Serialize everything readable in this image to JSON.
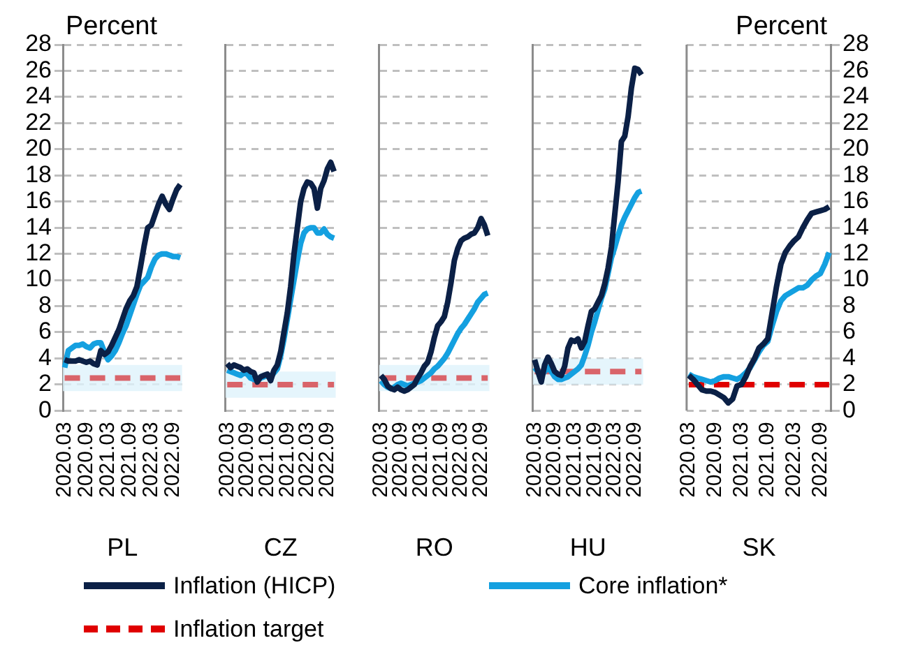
{
  "chart_data": [
    {
      "type": "line",
      "ylabel": "Percent",
      "xlabel": "PL",
      "grid": "y",
      "marker": "none",
      "categories": [
        "2020.03",
        null,
        null,
        null,
        null,
        null,
        "2020.09",
        null,
        null,
        null,
        null,
        null,
        "2021.03",
        null,
        null,
        null,
        null,
        null,
        "2021.09",
        null,
        null,
        null,
        null,
        null,
        "2022.03",
        null,
        null,
        null,
        null,
        null,
        "2022.09",
        null,
        null
      ],
      "ylim": [
        0,
        28
      ],
      "yticks": [
        0,
        2,
        4,
        6,
        8,
        10,
        12,
        14,
        16,
        18,
        20,
        22,
        24,
        26,
        28
      ],
      "bands": [
        {
          "axis": "y",
          "from": 1.5,
          "to": 3.5,
          "color": "#dff2fb"
        }
      ],
      "series": [
        {
          "color": "#0b2046",
          "values": [
            3.9,
            3.8,
            3.8,
            3.8,
            3.9,
            3.8,
            3.7,
            3.8,
            3.6,
            3.5,
            4.6,
            4.3,
            4.5,
            5.0,
            5.6,
            6.2,
            7.0,
            7.8,
            8.4,
            8.8,
            9.5,
            11.0,
            12.6,
            14.0,
            14.2,
            15.0,
            15.8,
            16.4,
            15.8,
            15.4,
            16.2,
            16.9,
            17.3
          ]
        },
        {
          "color": "#14a0e0",
          "values": [
            3.3,
            4.6,
            4.8,
            5.0,
            5.0,
            5.1,
            4.9,
            4.8,
            5.1,
            5.2,
            5.2,
            4.5,
            3.9,
            4.2,
            4.6,
            5.2,
            5.9,
            6.5,
            7.3,
            8.1,
            8.9,
            9.6,
            9.9,
            10.2,
            11.0,
            11.6,
            11.9,
            12.0,
            12.0,
            11.9,
            11.8,
            11.8,
            11.7
          ]
        },
        {
          "color": "#d9646a",
          "line_style": "dashed",
          "values": [
            2.5,
            2.5,
            2.5,
            2.5,
            2.5,
            2.5,
            2.5,
            2.5,
            2.5,
            2.5,
            2.5,
            2.5,
            2.5,
            2.5,
            2.5,
            2.5,
            2.5,
            2.5,
            2.5,
            2.5,
            2.5,
            2.5,
            2.5,
            2.5,
            2.5,
            2.5,
            2.5,
            2.5,
            2.5,
            2.5,
            2.5,
            2.5,
            2.5
          ]
        }
      ]
    },
    {
      "type": "line",
      "xlabel": "CZ",
      "grid": "y",
      "marker": "none",
      "tick_labels": "x",
      "categories": [
        "2020.03",
        null,
        null,
        null,
        null,
        null,
        "2020.09",
        null,
        null,
        null,
        null,
        null,
        "2021.03",
        null,
        null,
        null,
        null,
        null,
        "2021.09",
        null,
        null,
        null,
        null,
        null,
        "2022.03",
        null,
        null,
        null,
        null,
        null,
        "2022.09",
        null,
        null
      ],
      "ylim": [
        0,
        28
      ],
      "yticks": [
        0,
        2,
        4,
        6,
        8,
        10,
        12,
        14,
        16,
        18,
        20,
        22,
        24,
        26,
        28
      ],
      "bands": [
        {
          "axis": "y",
          "from": 1,
          "to": 3,
          "color": "#dff2fb"
        }
      ],
      "series": [
        {
          "color": "#0b2046",
          "values": [
            3.6,
            3.3,
            3.5,
            3.4,
            3.3,
            3.1,
            3.2,
            3.0,
            2.9,
            2.2,
            2.6,
            2.7,
            2.8,
            2.3,
            3.1,
            3.5,
            4.5,
            6.0,
            7.5,
            9.5,
            12.0,
            14.0,
            16.0,
            17.0,
            17.5,
            17.4,
            17.0,
            15.5,
            17.0,
            17.6,
            18.5,
            19.0,
            18.3
          ]
        },
        {
          "color": "#14a0e0",
          "values": [
            3.1,
            3.0,
            2.9,
            2.8,
            2.7,
            2.9,
            2.8,
            2.5,
            2.4,
            2.3,
            2.5,
            2.6,
            2.7,
            2.6,
            2.9,
            3.2,
            4.2,
            5.5,
            7.0,
            8.5,
            10.0,
            11.5,
            12.8,
            13.6,
            13.9,
            14.0,
            14.0,
            13.6,
            13.6,
            13.9,
            13.5,
            13.3,
            13.2
          ]
        },
        {
          "color": "#d9646a",
          "line_style": "dashed",
          "values": [
            2,
            2,
            2,
            2,
            2,
            2,
            2,
            2,
            2,
            2,
            2,
            2,
            2,
            2,
            2,
            2,
            2,
            2,
            2,
            2,
            2,
            2,
            2,
            2,
            2,
            2,
            2,
            2,
            2,
            2,
            2,
            2,
            2
          ]
        }
      ]
    },
    {
      "type": "line",
      "xlabel": "RO",
      "grid": "y",
      "marker": "none",
      "tick_labels": "x",
      "categories": [
        "2020.03",
        null,
        null,
        null,
        null,
        null,
        "2020.09",
        null,
        null,
        null,
        null,
        null,
        "2021.03",
        null,
        null,
        null,
        null,
        null,
        "2021.09",
        null,
        null,
        null,
        null,
        null,
        "2022.03",
        null,
        null,
        null,
        null,
        null,
        "2022.09",
        null,
        null
      ],
      "ylim": [
        0,
        28
      ],
      "yticks": [
        0,
        2,
        4,
        6,
        8,
        10,
        12,
        14,
        16,
        18,
        20,
        22,
        24,
        26,
        28
      ],
      "bands": [
        {
          "axis": "y",
          "from": 1.5,
          "to": 3.5,
          "color": "#dff2fb"
        }
      ],
      "series": [
        {
          "color": "#0b2046",
          "values": [
            2.7,
            2.4,
            1.9,
            1.7,
            1.6,
            1.8,
            1.6,
            1.5,
            1.6,
            1.8,
            2.0,
            2.5,
            2.9,
            3.4,
            3.7,
            4.5,
            5.6,
            6.5,
            6.8,
            7.2,
            8.3,
            9.8,
            11.5,
            12.4,
            13.0,
            13.2,
            13.3,
            13.5,
            13.6,
            14.0,
            14.7,
            14.2,
            13.4
          ]
        },
        {
          "color": "#14a0e0",
          "values": [
            2.3,
            2.0,
            1.8,
            1.7,
            1.8,
            2.0,
            2.1,
            2.0,
            1.9,
            2.0,
            2.1,
            2.2,
            2.3,
            2.5,
            2.7,
            2.9,
            3.2,
            3.4,
            3.7,
            4.0,
            4.4,
            4.9,
            5.4,
            5.9,
            6.3,
            6.6,
            7.0,
            7.4,
            7.8,
            8.3,
            8.6,
            8.9,
            9.0
          ]
        },
        {
          "color": "#d9646a",
          "line_style": "dashed",
          "values": [
            2.5,
            2.5,
            2.5,
            2.5,
            2.5,
            2.5,
            2.5,
            2.5,
            2.5,
            2.5,
            2.5,
            2.5,
            2.5,
            2.5,
            2.5,
            2.5,
            2.5,
            2.5,
            2.5,
            2.5,
            2.5,
            2.5,
            2.5,
            2.5,
            2.5,
            2.5,
            2.5,
            2.5,
            2.5,
            2.5,
            2.5,
            2.5,
            2.5
          ]
        }
      ]
    },
    {
      "type": "line",
      "xlabel": "HU",
      "grid": "y",
      "marker": "none",
      "tick_labels": "x",
      "categories": [
        "2020.03",
        null,
        null,
        null,
        null,
        null,
        "2020.09",
        null,
        null,
        null,
        null,
        null,
        "2021.03",
        null,
        null,
        null,
        null,
        null,
        "2021.09",
        null,
        null,
        null,
        null,
        null,
        "2022.03",
        null,
        null,
        null,
        null,
        null,
        "2022.09",
        null,
        null
      ],
      "ylim": [
        0,
        28
      ],
      "yticks": [
        0,
        2,
        4,
        6,
        8,
        10,
        12,
        14,
        16,
        18,
        20,
        22,
        24,
        26,
        28
      ],
      "bands": [
        {
          "axis": "y",
          "from": 2,
          "to": 4,
          "color": "#dff2fb"
        }
      ],
      "series": [
        {
          "color": "#0b2046",
          "values": [
            3.9,
            3.0,
            2.2,
            3.5,
            4.1,
            3.6,
            3.0,
            2.8,
            2.7,
            3.4,
            4.8,
            5.4,
            5.3,
            5.5,
            4.8,
            5.3,
            6.5,
            7.6,
            7.8,
            8.3,
            8.8,
            9.7,
            10.9,
            12.5,
            15.0,
            17.5,
            20.6,
            21.0,
            22.5,
            24.7,
            26.2,
            26.1,
            25.7
          ]
        },
        {
          "color": "#14a0e0",
          "values": [
            3.3,
            3.0,
            2.7,
            3.0,
            3.3,
            3.0,
            2.6,
            2.4,
            2.4,
            2.5,
            2.6,
            2.8,
            3.0,
            3.2,
            3.5,
            4.2,
            5.0,
            6.0,
            6.8,
            7.7,
            8.6,
            9.3,
            10.5,
            11.7,
            12.5,
            13.4,
            14.2,
            14.8,
            15.3,
            15.8,
            16.3,
            16.7,
            16.8
          ]
        },
        {
          "color": "#d9646a",
          "line_style": "dashed",
          "values": [
            3,
            3,
            3,
            3,
            3,
            3,
            3,
            3,
            3,
            3,
            3,
            3,
            3,
            3,
            3,
            3,
            3,
            3,
            3,
            3,
            3,
            3,
            3,
            3,
            3,
            3,
            3,
            3,
            3,
            3,
            3,
            3,
            3
          ]
        }
      ]
    },
    {
      "type": "line",
      "y2label": "Percent",
      "xlabel": "SK",
      "grid": "y",
      "marker": "none",
      "legend": "bottom",
      "categories": [
        "2020.03",
        null,
        null,
        null,
        null,
        null,
        "2020.09",
        null,
        null,
        null,
        null,
        null,
        "2021.03",
        null,
        null,
        null,
        null,
        null,
        "2021.09",
        null,
        null,
        null,
        null,
        null,
        "2022.03",
        null,
        null,
        null,
        null,
        null,
        "2022.09",
        null,
        null
      ],
      "y2lim": [
        0,
        28
      ],
      "y2ticks": [
        0,
        2,
        4,
        6,
        8,
        10,
        12,
        14,
        16,
        18,
        20,
        22,
        24,
        26,
        28
      ],
      "series": [
        {
          "name": "Inflation (HICP)",
          "color": "#0b2046",
          "axis": "y2",
          "values": [
            2.7,
            2.4,
            2.0,
            1.6,
            1.5,
            1.5,
            1.4,
            1.2,
            1.0,
            0.6,
            0.9,
            1.9,
            2.0,
            2.6,
            3.4,
            4.0,
            4.8,
            5.1,
            5.5,
            7.5,
            9.5,
            11.2,
            12.1,
            12.6,
            13.0,
            13.3,
            14.0,
            14.6,
            15.1,
            15.2,
            15.3,
            15.4,
            15.6
          ]
        },
        {
          "name": "Core inflation*",
          "color": "#14a0e0",
          "axis": "y2",
          "values": [
            2.8,
            2.6,
            2.5,
            2.4,
            2.3,
            2.2,
            2.3,
            2.5,
            2.6,
            2.6,
            2.5,
            2.4,
            2.6,
            2.9,
            3.3,
            3.9,
            4.5,
            5.0,
            5.3,
            6.5,
            7.6,
            8.4,
            8.8,
            9.0,
            9.2,
            9.4,
            9.4,
            9.6,
            10.0,
            10.3,
            10.5,
            11.2,
            12.1
          ]
        },
        {
          "name": "Inflation target",
          "color": "#e00000",
          "axis": "y2",
          "line_style": "dashed",
          "values": [
            2,
            2,
            2,
            2,
            2,
            2,
            2,
            2,
            2,
            2,
            2,
            2,
            2,
            2,
            2,
            2,
            2,
            2,
            2,
            2,
            2,
            2,
            2,
            2,
            2,
            2,
            2,
            2,
            2,
            2,
            2,
            2,
            2
          ]
        }
      ]
    }
  ]
}
